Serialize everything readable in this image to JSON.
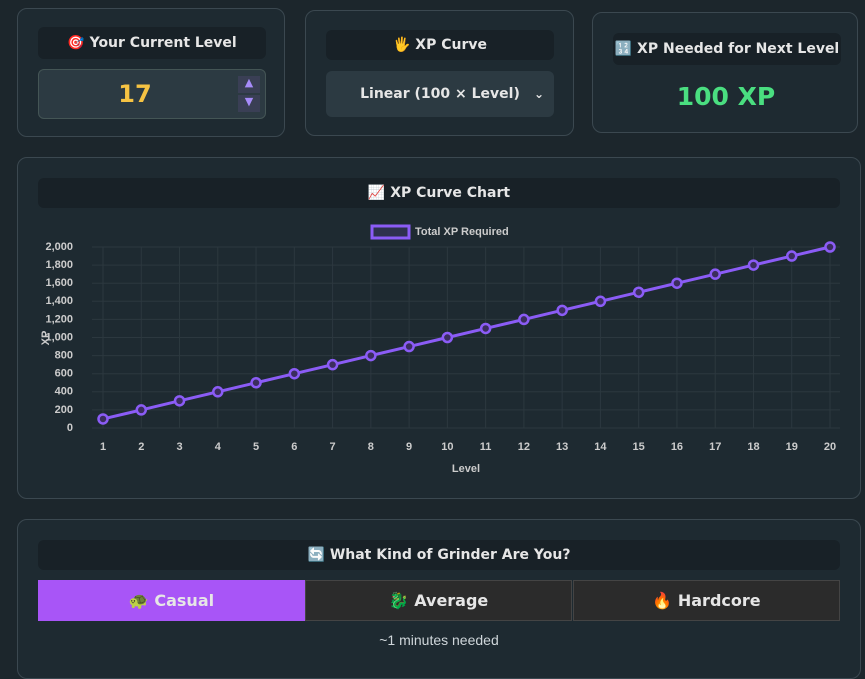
{
  "level_card": {
    "label": "🎯 Your Current Level",
    "value": 17
  },
  "curve_card": {
    "label": "🖐 XP Curve",
    "selected": "Linear (100 × Level)"
  },
  "needed_card": {
    "label": "🔢 XP Needed for Next Level",
    "value": "100 XP"
  },
  "chart_card": {
    "heading": "📈 XP Curve Chart"
  },
  "chart_data": {
    "type": "line",
    "x_label": "Level",
    "y_label": "XP",
    "x": [
      1,
      2,
      3,
      4,
      5,
      6,
      7,
      8,
      9,
      10,
      11,
      12,
      13,
      14,
      15,
      16,
      17,
      18,
      19,
      20
    ],
    "xlim": [
      1,
      20
    ],
    "xticks": [
      1,
      2,
      3,
      4,
      5,
      6,
      7,
      8,
      9,
      10,
      11,
      12,
      13,
      14,
      15,
      16,
      17,
      18,
      19,
      20
    ],
    "ylim": [
      0,
      2000
    ],
    "yticks": [
      0,
      200,
      400,
      600,
      800,
      {
        "value": 1000,
        "label": "1,000"
      },
      {
        "value": 1200,
        "label": "1,200"
      },
      {
        "value": 1400,
        "label": "1,400"
      },
      {
        "value": 1600,
        "label": "1,600"
      },
      {
        "value": 1800,
        "label": "1,800"
      },
      {
        "value": 2000,
        "label": "2,000"
      }
    ],
    "grid": true,
    "legend": "top",
    "series": [
      {
        "name": "Total XP Required",
        "color": "#8b5cf6",
        "values": [
          100,
          200,
          300,
          400,
          500,
          600,
          700,
          800,
          900,
          1000,
          1100,
          1200,
          1300,
          1400,
          1500,
          1600,
          1700,
          1800,
          1900,
          2000
        ]
      }
    ]
  },
  "grinder": {
    "heading": "🔄 What Kind of Grinder Are You?",
    "options": [
      "🐢 Casual",
      "🐉 Average",
      "🔥 Hardcore"
    ],
    "result": "~1 minutes needed"
  }
}
